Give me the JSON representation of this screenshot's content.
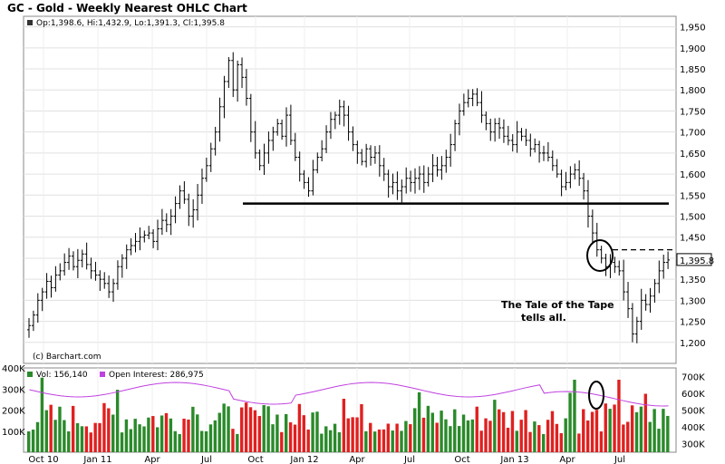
{
  "chart_data": [
    {
      "type": "ohlc",
      "title": "GC - Gold - Weekly Nearest OHLC Chart",
      "header": "Op:1,398.6, Hi:1,432.9, Lo:1,391.3, Cl:1,395.8",
      "credit": "(c) Barchart.com",
      "ylim": [
        1150,
        1975
      ],
      "yticks": [
        1200,
        1250,
        1300,
        1350,
        1400,
        1450,
        1500,
        1550,
        1600,
        1650,
        1700,
        1750,
        1800,
        1850,
        1900,
        1950
      ],
      "yticklabels": [
        "1,200",
        "1,250",
        "1,300",
        "1,350",
        "1,400",
        "1,450",
        "1,500",
        "1,550",
        "1,600",
        "1,650",
        "1,700",
        "1,750",
        "1,800",
        "1,850",
        "1,900",
        "1,950"
      ],
      "x_labels": [
        "Oct 10",
        "Jan 11",
        "Apr",
        "Jul",
        "Oct",
        "Jan 12",
        "Apr",
        "Jul",
        "Oct",
        "Jan 13",
        "Apr",
        "Jul"
      ],
      "last_price_label": "1,395.8",
      "support_level": 1530,
      "resistance_level": 1420,
      "annotation": [
        "The Tale of the Tape",
        "tells all."
      ],
      "weekly_close": [
        1240,
        1265,
        1300,
        1320,
        1345,
        1330,
        1360,
        1370,
        1390,
        1405,
        1380,
        1395,
        1410,
        1385,
        1370,
        1360,
        1350,
        1340,
        1320,
        1340,
        1380,
        1400,
        1420,
        1430,
        1440,
        1450,
        1455,
        1460,
        1440,
        1470,
        1490,
        1480,
        1500,
        1530,
        1560,
        1540,
        1500,
        1515,
        1550,
        1590,
        1620,
        1660,
        1700,
        1760,
        1820,
        1870,
        1800,
        1860,
        1830,
        1780,
        1700,
        1650,
        1620,
        1650,
        1680,
        1700,
        1720,
        1690,
        1740,
        1680,
        1640,
        1600,
        1580,
        1560,
        1610,
        1640,
        1660,
        1700,
        1730,
        1740,
        1760,
        1740,
        1700,
        1670,
        1650,
        1630,
        1660,
        1640,
        1650,
        1620,
        1600,
        1570,
        1580,
        1560,
        1570,
        1590,
        1580,
        1590,
        1600,
        1580,
        1600,
        1620,
        1610,
        1620,
        1640,
        1670,
        1720,
        1750,
        1770,
        1780,
        1790,
        1770,
        1740,
        1720,
        1700,
        1720,
        1710,
        1690,
        1680,
        1670,
        1700,
        1690,
        1680,
        1660,
        1670,
        1650,
        1650,
        1640,
        1620,
        1600,
        1570,
        1580,
        1600,
        1610,
        1590,
        1560,
        1500,
        1460,
        1420,
        1400,
        1380,
        1390,
        1380,
        1370,
        1320,
        1280,
        1220,
        1250,
        1300,
        1290,
        1310,
        1340,
        1370,
        1390,
        1395.8
      ]
    },
    {
      "type": "bar",
      "name": "volume-open-interest",
      "legend": [
        "Vol: 156,140",
        "Open Interest: 286,975"
      ],
      "ylim": [
        0,
        400
      ],
      "left_ticks": [
        "100K",
        "200K",
        "300K",
        "400K"
      ],
      "right_ticks": [
        "300K",
        "400K",
        "500K",
        "600K",
        "700K"
      ],
      "colors": {
        "up": "#2a8a2a",
        "down": "#e02020",
        "oi": "#c040e0"
      }
    }
  ]
}
